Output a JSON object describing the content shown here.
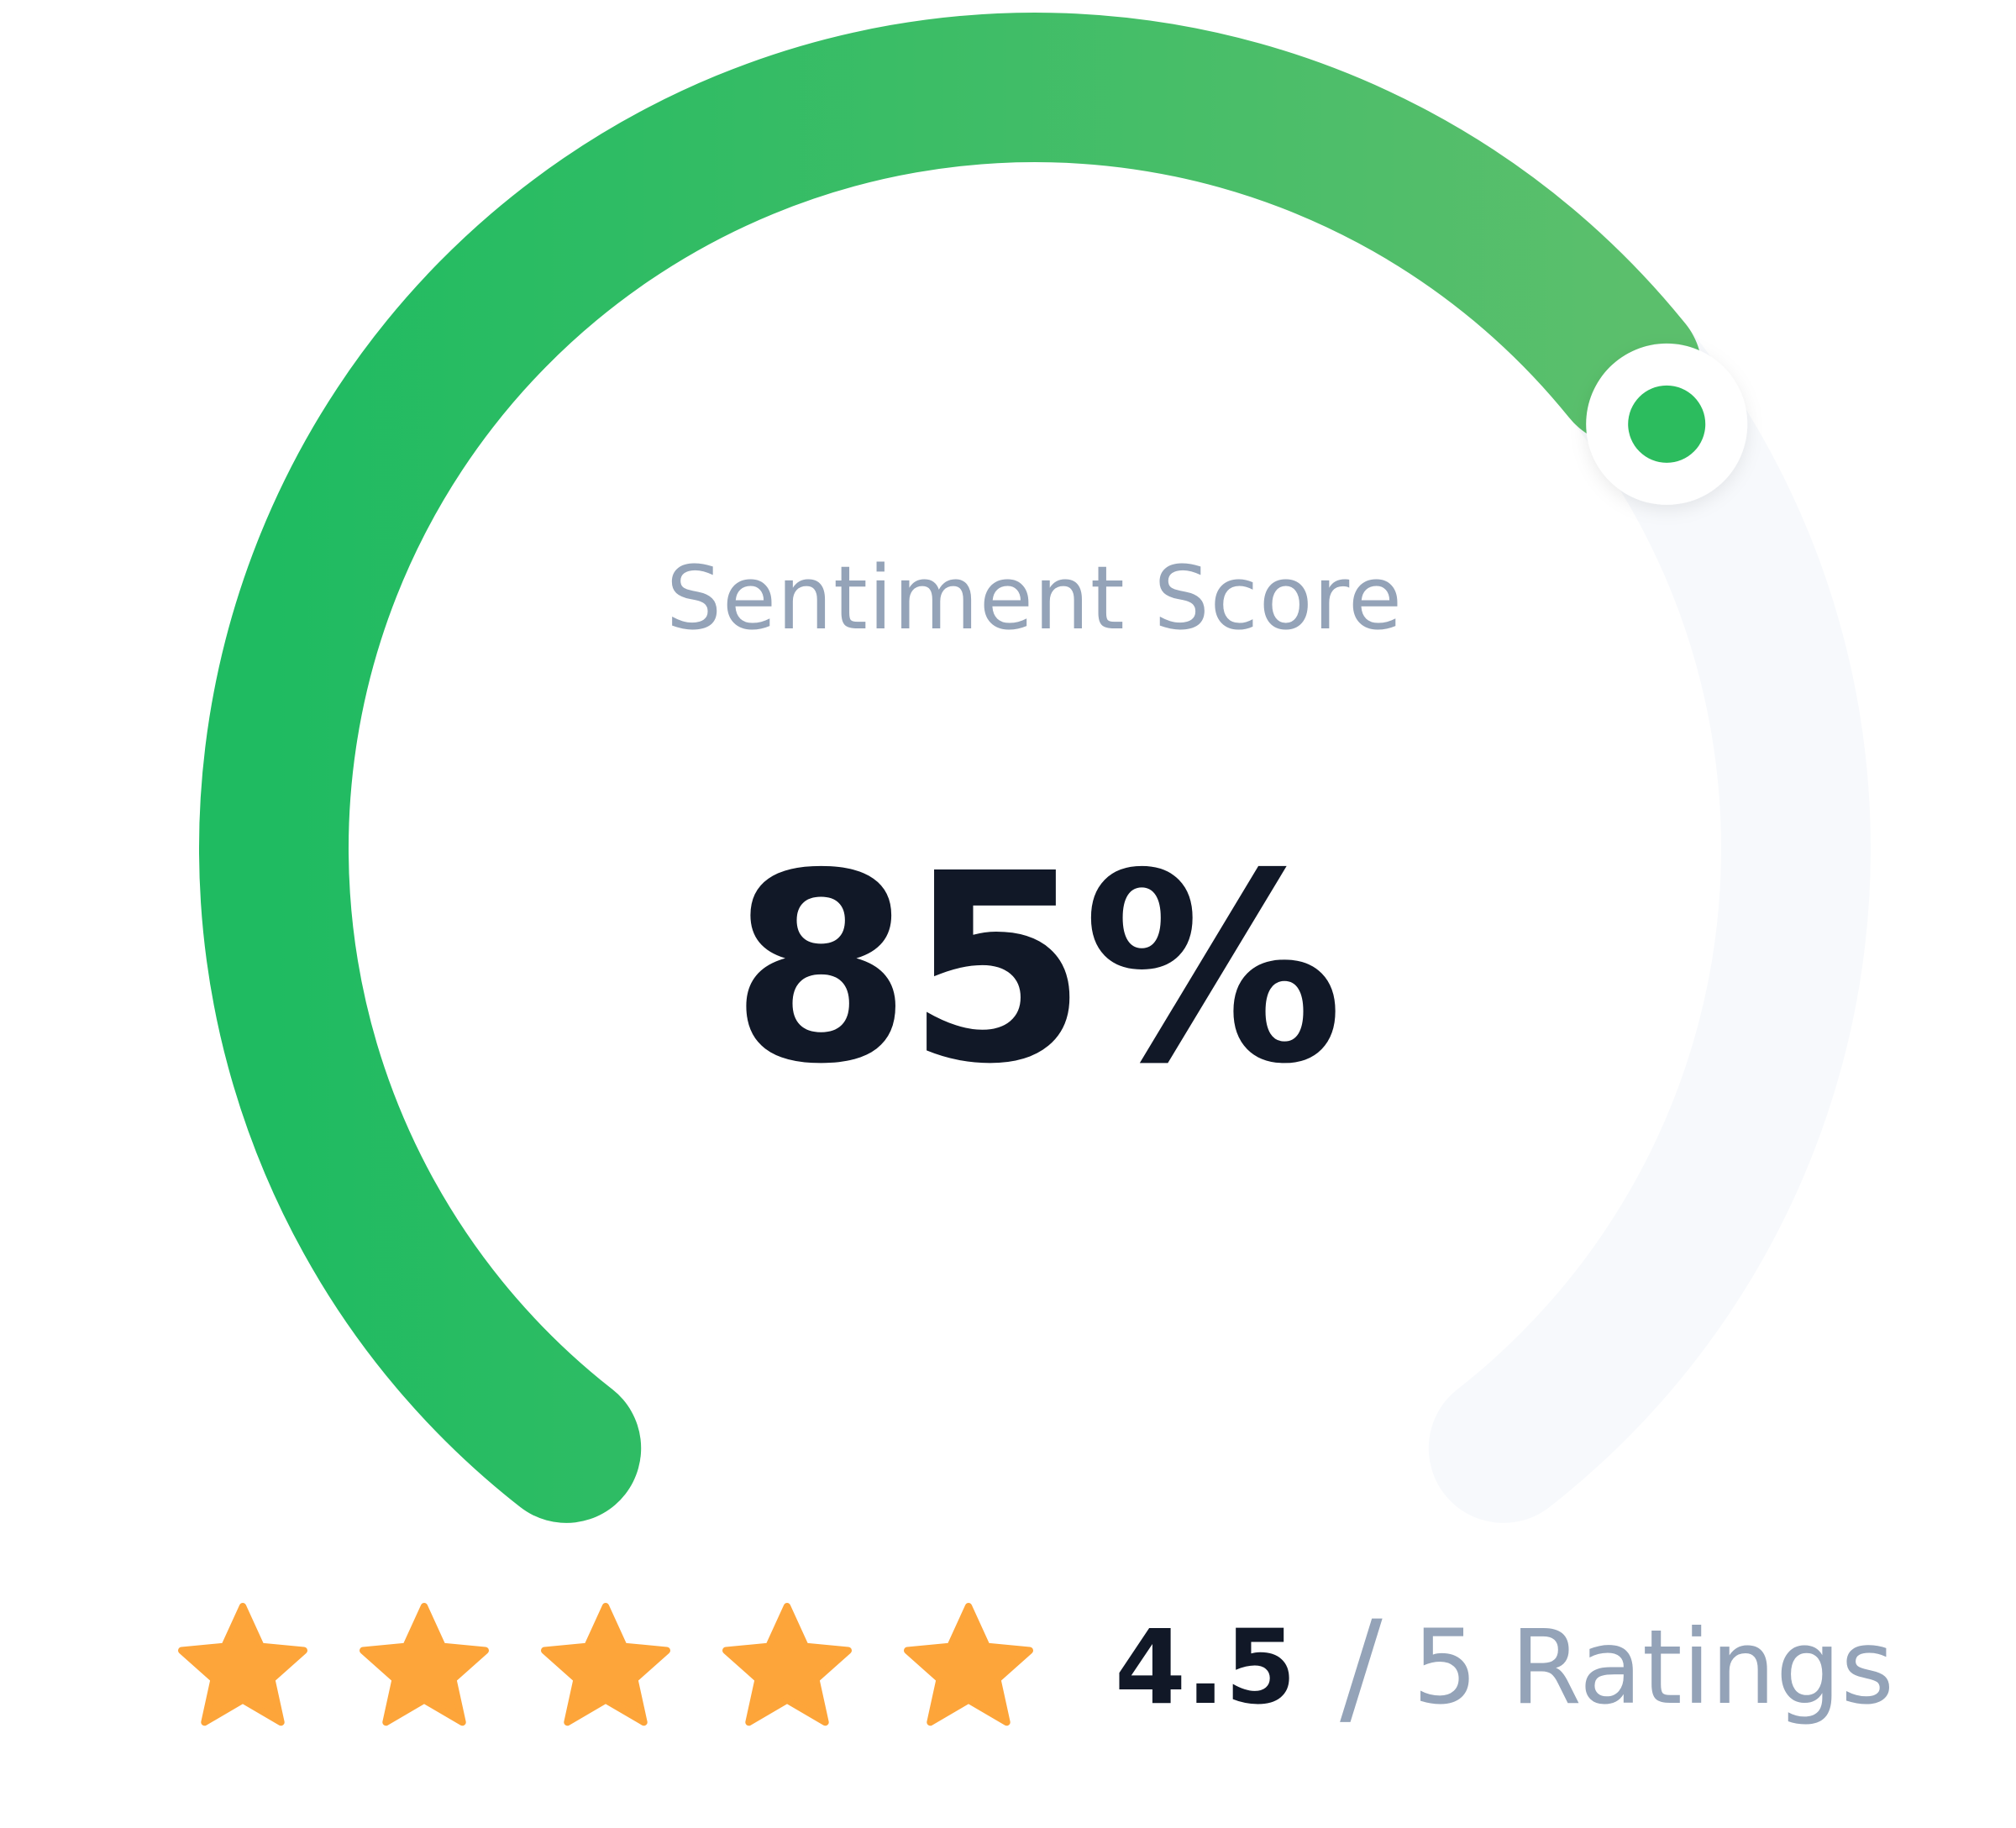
{
  "gauge": {
    "label": "Sentiment Score",
    "value_text": "85%",
    "percent": 85,
    "colors": {
      "fill_start": "#1fbb61",
      "fill_end": "#5bbf6c",
      "track": "#f7f9fc",
      "knob": "#2cbc5e"
    }
  },
  "rating": {
    "value": "4.5",
    "separator": "/",
    "suffix": "5 Ratings",
    "star_count": 5,
    "star_color": "#fda53a"
  }
}
